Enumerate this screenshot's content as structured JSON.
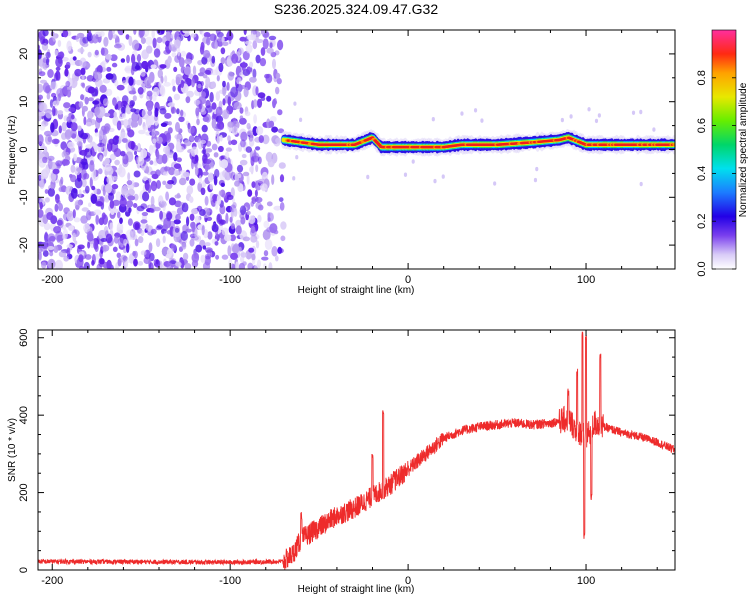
{
  "title": "S236.2025.324.09.47.G32",
  "chart_data": [
    {
      "type": "heatmap",
      "panel": "spectrogram",
      "xlabel": "Height of straight line (km)",
      "ylabel": "Frequency (Hz)",
      "xlim": [
        -208,
        150
      ],
      "ylim": [
        -25,
        25
      ],
      "xticks": [
        -200,
        -100,
        0,
        100
      ],
      "yticks": [
        -20,
        -10,
        0,
        10,
        20
      ],
      "noise_region_x": [
        -208,
        -70
      ],
      "signal_region_x": [
        -70,
        150
      ],
      "signal_band_center_hz": [
        [
          -70,
          2
        ],
        [
          -60,
          1.5
        ],
        [
          -50,
          1
        ],
        [
          -40,
          1
        ],
        [
          -30,
          1
        ],
        [
          -20,
          2.5
        ],
        [
          -15,
          0.5
        ],
        [
          -10,
          0.5
        ],
        [
          0,
          0.5
        ],
        [
          10,
          0.5
        ],
        [
          20,
          0.5
        ],
        [
          30,
          1
        ],
        [
          50,
          1
        ],
        [
          70,
          1.5
        ],
        [
          85,
          2
        ],
        [
          90,
          2.5
        ],
        [
          100,
          1
        ],
        [
          110,
          1
        ],
        [
          150,
          1
        ]
      ],
      "colorbar": {
        "label": "Normalized spectral amplitude",
        "ticks": [
          0.0,
          0.2,
          0.4,
          0.6,
          0.8
        ],
        "range": [
          0,
          1
        ],
        "colors": [
          "#ffffff",
          "#b69cf0",
          "#3b00e8",
          "#1c7cff",
          "#00e6ee",
          "#00d66a",
          "#66ee00",
          "#e8e800",
          "#ffa200",
          "#ff2a12",
          "#ff2e9e"
        ]
      }
    },
    {
      "type": "line",
      "panel": "snr",
      "xlabel": "Height of straight line (km)",
      "ylabel": "SNR (10 * v/v)",
      "xlim": [
        -208,
        150
      ],
      "ylim": [
        0,
        620
      ],
      "xticks": [
        -200,
        -100,
        0,
        100
      ],
      "yticks": [
        0,
        200,
        400,
        600
      ],
      "color": "#ee2b2b",
      "series": [
        {
          "name": "SNR",
          "x": [
            -208,
            -150,
            -100,
            -70,
            -65,
            -60,
            -50,
            -40,
            -30,
            -20,
            -10,
            0,
            10,
            20,
            30,
            40,
            50,
            60,
            70,
            80,
            85,
            90,
            95,
            98,
            100,
            105,
            110,
            120,
            130,
            140,
            150
          ],
          "y": [
            22,
            21,
            20,
            22,
            40,
            80,
            110,
            140,
            160,
            190,
            220,
            260,
            300,
            340,
            360,
            370,
            375,
            380,
            375,
            380,
            385,
            390,
            360,
            350,
            340,
            380,
            370,
            355,
            345,
            330,
            310
          ]
        }
      ],
      "spikes": [
        [
          -60,
          150
        ],
        [
          -20,
          300
        ],
        [
          -14,
          415
        ],
        [
          -8,
          260
        ],
        [
          90,
          470
        ],
        [
          95,
          520
        ],
        [
          98,
          620
        ],
        [
          99,
          100
        ],
        [
          100,
          610
        ],
        [
          103,
          200
        ],
        [
          108,
          560
        ]
      ]
    }
  ]
}
